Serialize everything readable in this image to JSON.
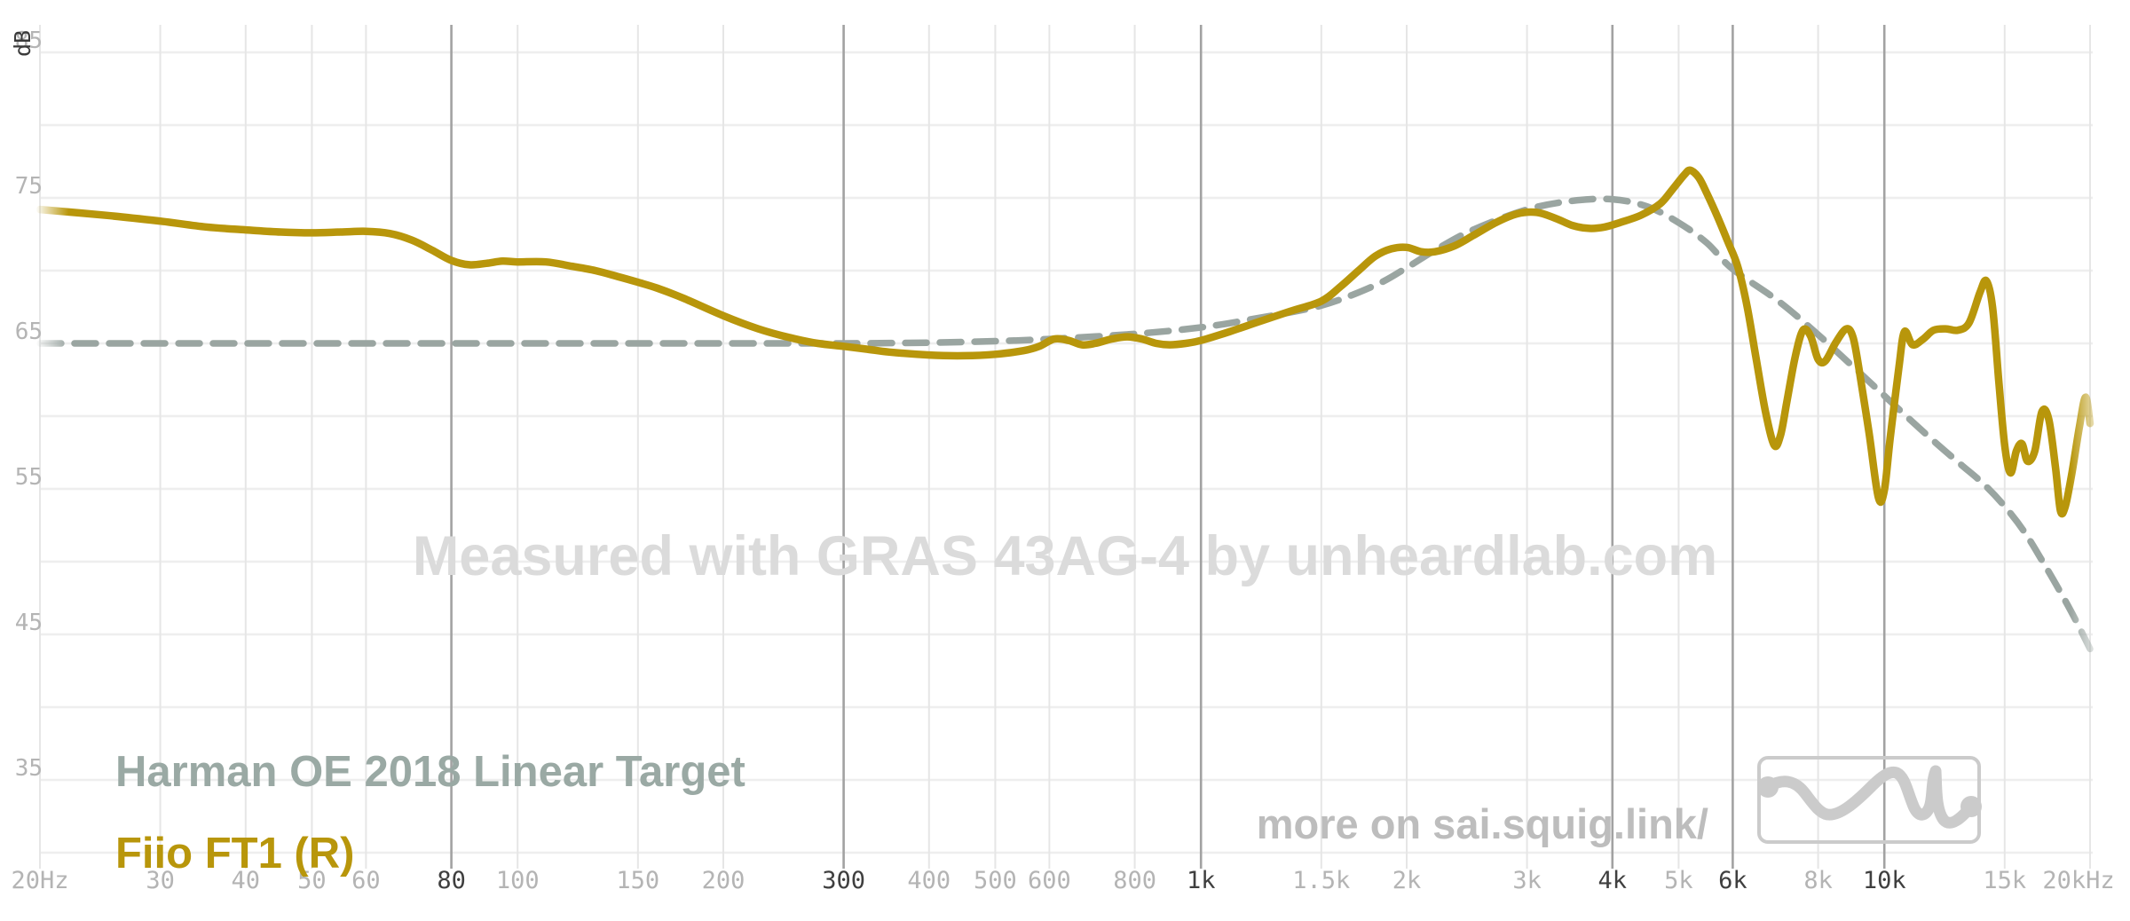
{
  "axes": {
    "y_unit": "dB"
  },
  "watermark": "Measured with GRAS 43AG-4 by unheardlab.com",
  "footer": {
    "more_on": "more on sai.squig.link/"
  },
  "legend": {
    "target": {
      "label": "Harman OE 2018 Linear Target",
      "color": "#9aa9a4"
    },
    "device": {
      "label": "Fiio FT1 (R)",
      "color": "#b8960b"
    }
  },
  "colors": {
    "grid_light_h": "#eeeeee",
    "grid_light_v": "#e6e6e6",
    "grid_dark_v": "#a2a2a2",
    "tick_light": "#b4b4b4",
    "tick_dark": "#3f3f3f",
    "watermark": "#dbdbdb",
    "more_on": "#bdbdbd",
    "logo": "#cbcbcb",
    "gold_curve": "#b8960b",
    "target_curve": "#9aa5a1"
  },
  "chart_data": {
    "type": "line",
    "title": "",
    "xlabel": "",
    "ylabel": "dB",
    "x_scale": "log",
    "x_range": [
      20,
      20000
    ],
    "y_gridlines_db": [
      85,
      80,
      75,
      70,
      65,
      60,
      55,
      50,
      45,
      40,
      35,
      30
    ],
    "y_ticks": [
      {
        "db": 85,
        "label": "85"
      },
      {
        "db": 75,
        "label": "75"
      },
      {
        "db": 65,
        "label": "65"
      },
      {
        "db": 55,
        "label": "55"
      },
      {
        "db": 45,
        "label": "45"
      },
      {
        "db": 35,
        "label": "35"
      }
    ],
    "x_ticks": [
      {
        "f": 20,
        "label": "20Hz",
        "major": false
      },
      {
        "f": 30,
        "label": "30",
        "major": false
      },
      {
        "f": 40,
        "label": "40",
        "major": false
      },
      {
        "f": 50,
        "label": "50",
        "major": false
      },
      {
        "f": 60,
        "label": "60",
        "major": false
      },
      {
        "f": 80,
        "label": "80",
        "major": true
      },
      {
        "f": 100,
        "label": "100",
        "major": false
      },
      {
        "f": 150,
        "label": "150",
        "major": false
      },
      {
        "f": 200,
        "label": "200",
        "major": false
      },
      {
        "f": 300,
        "label": "300",
        "major": true
      },
      {
        "f": 400,
        "label": "400",
        "major": false
      },
      {
        "f": 500,
        "label": "500",
        "major": false
      },
      {
        "f": 600,
        "label": "600",
        "major": false
      },
      {
        "f": 800,
        "label": "800",
        "major": false
      },
      {
        "f": 1000,
        "label": "1k",
        "major": true
      },
      {
        "f": 1500,
        "label": "1.5k",
        "major": false
      },
      {
        "f": 2000,
        "label": "2k",
        "major": false
      },
      {
        "f": 3000,
        "label": "3k",
        "major": false
      },
      {
        "f": 4000,
        "label": "4k",
        "major": true
      },
      {
        "f": 5000,
        "label": "5k",
        "major": false
      },
      {
        "f": 6000,
        "label": "6k",
        "major": true
      },
      {
        "f": 8000,
        "label": "8k",
        "major": false
      },
      {
        "f": 10000,
        "label": "10k",
        "major": true
      },
      {
        "f": 15000,
        "label": "15k",
        "major": false
      },
      {
        "f": 20000,
        "label": "20kHz",
        "major": false
      }
    ],
    "series": [
      {
        "name": "Harman OE 2018 Linear Target",
        "style": "dashed",
        "color": "#9aa5a1",
        "points": [
          [
            20,
            65.0
          ],
          [
            30,
            65.0
          ],
          [
            40,
            65.0
          ],
          [
            60,
            65.0
          ],
          [
            80,
            65.0
          ],
          [
            100,
            65.0
          ],
          [
            150,
            65.0
          ],
          [
            200,
            65.0
          ],
          [
            250,
            65.0
          ],
          [
            300,
            65.0
          ],
          [
            400,
            65.05
          ],
          [
            500,
            65.15
          ],
          [
            600,
            65.3
          ],
          [
            800,
            65.65
          ],
          [
            1000,
            66.1
          ],
          [
            1200,
            66.7
          ],
          [
            1500,
            67.6
          ],
          [
            1800,
            69.0
          ],
          [
            2000,
            70.2
          ],
          [
            2200,
            71.4
          ],
          [
            2500,
            72.8
          ],
          [
            3000,
            74.2
          ],
          [
            3500,
            74.8
          ],
          [
            4000,
            74.9
          ],
          [
            4500,
            74.4
          ],
          [
            5000,
            73.3
          ],
          [
            5500,
            71.9
          ],
          [
            6000,
            70.1
          ],
          [
            7000,
            67.9
          ],
          [
            8000,
            65.6
          ],
          [
            9000,
            63.4
          ],
          [
            10000,
            61.4
          ],
          [
            11000,
            59.6
          ],
          [
            12000,
            58.0
          ],
          [
            13000,
            56.6
          ],
          [
            14000,
            55.3
          ],
          [
            15000,
            53.8
          ],
          [
            16000,
            52.1
          ],
          [
            17000,
            50.1
          ],
          [
            18000,
            48.1
          ],
          [
            19000,
            46.1
          ],
          [
            20000,
            44.0
          ]
        ]
      },
      {
        "name": "Fiio FT1 (R)",
        "style": "solid",
        "color": "#b8960b",
        "points": [
          [
            20,
            74.2
          ],
          [
            25,
            73.8
          ],
          [
            30,
            73.4
          ],
          [
            35,
            73.0
          ],
          [
            40,
            72.8
          ],
          [
            45,
            72.65
          ],
          [
            50,
            72.6
          ],
          [
            55,
            72.65
          ],
          [
            60,
            72.7
          ],
          [
            65,
            72.55
          ],
          [
            70,
            72.1
          ],
          [
            75,
            71.4
          ],
          [
            80,
            70.7
          ],
          [
            85,
            70.4
          ],
          [
            90,
            70.5
          ],
          [
            95,
            70.65
          ],
          [
            100,
            70.6
          ],
          [
            110,
            70.6
          ],
          [
            120,
            70.3
          ],
          [
            130,
            70.0
          ],
          [
            140,
            69.6
          ],
          [
            150,
            69.2
          ],
          [
            160,
            68.8
          ],
          [
            175,
            68.1
          ],
          [
            200,
            66.9
          ],
          [
            225,
            66.0
          ],
          [
            250,
            65.4
          ],
          [
            275,
            65.0
          ],
          [
            300,
            64.8
          ],
          [
            325,
            64.6
          ],
          [
            350,
            64.4
          ],
          [
            400,
            64.2
          ],
          [
            450,
            64.15
          ],
          [
            500,
            64.25
          ],
          [
            550,
            64.5
          ],
          [
            580,
            64.8
          ],
          [
            610,
            65.3
          ],
          [
            640,
            65.2
          ],
          [
            670,
            64.9
          ],
          [
            700,
            65.0
          ],
          [
            740,
            65.3
          ],
          [
            780,
            65.45
          ],
          [
            820,
            65.3
          ],
          [
            860,
            65.0
          ],
          [
            900,
            64.9
          ],
          [
            950,
            65.0
          ],
          [
            1000,
            65.2
          ],
          [
            1100,
            65.8
          ],
          [
            1200,
            66.4
          ],
          [
            1350,
            67.2
          ],
          [
            1500,
            67.9
          ],
          [
            1600,
            68.9
          ],
          [
            1700,
            70.0
          ],
          [
            1800,
            71.0
          ],
          [
            1900,
            71.5
          ],
          [
            2000,
            71.6
          ],
          [
            2100,
            71.3
          ],
          [
            2200,
            71.3
          ],
          [
            2350,
            71.7
          ],
          [
            2500,
            72.4
          ],
          [
            2700,
            73.3
          ],
          [
            2900,
            73.9
          ],
          [
            3100,
            74.0
          ],
          [
            3300,
            73.6
          ],
          [
            3500,
            73.1
          ],
          [
            3700,
            72.9
          ],
          [
            3900,
            73.0
          ],
          [
            4100,
            73.3
          ],
          [
            4400,
            73.8
          ],
          [
            4700,
            74.6
          ],
          [
            4900,
            75.6
          ],
          [
            5100,
            76.6
          ],
          [
            5200,
            76.9
          ],
          [
            5350,
            76.4
          ],
          [
            5500,
            75.3
          ],
          [
            5700,
            73.7
          ],
          [
            5900,
            72.0
          ],
          [
            6100,
            70.3
          ],
          [
            6300,
            67.5
          ],
          [
            6500,
            63.8
          ],
          [
            6700,
            60.3
          ],
          [
            6900,
            58.0
          ],
          [
            7050,
            58.7
          ],
          [
            7200,
            61.0
          ],
          [
            7400,
            64.0
          ],
          [
            7600,
            65.9
          ],
          [
            7800,
            65.5
          ],
          [
            8000,
            63.9
          ],
          [
            8200,
            63.8
          ],
          [
            8500,
            65.1
          ],
          [
            8800,
            66.0
          ],
          [
            9000,
            65.4
          ],
          [
            9200,
            63.0
          ],
          [
            9500,
            58.8
          ],
          [
            9800,
            54.4
          ],
          [
            10000,
            54.9
          ],
          [
            10200,
            58.5
          ],
          [
            10500,
            63.3
          ],
          [
            10700,
            65.8
          ],
          [
            11000,
            64.9
          ],
          [
            11400,
            65.3
          ],
          [
            11800,
            65.9
          ],
          [
            12300,
            66.0
          ],
          [
            12800,
            65.9
          ],
          [
            13300,
            66.4
          ],
          [
            13800,
            68.5
          ],
          [
            14100,
            69.3
          ],
          [
            14400,
            67.5
          ],
          [
            14700,
            62.5
          ],
          [
            15000,
            58.0
          ],
          [
            15300,
            56.1
          ],
          [
            15600,
            57.6
          ],
          [
            15900,
            58.1
          ],
          [
            16200,
            56.9
          ],
          [
            16600,
            57.6
          ],
          [
            17000,
            60.3
          ],
          [
            17400,
            59.8
          ],
          [
            17800,
            56.5
          ],
          [
            18100,
            53.5
          ],
          [
            18400,
            53.8
          ],
          [
            18800,
            56.0
          ],
          [
            19300,
            59.3
          ],
          [
            19700,
            61.3
          ],
          [
            20000,
            59.5
          ]
        ]
      }
    ]
  }
}
